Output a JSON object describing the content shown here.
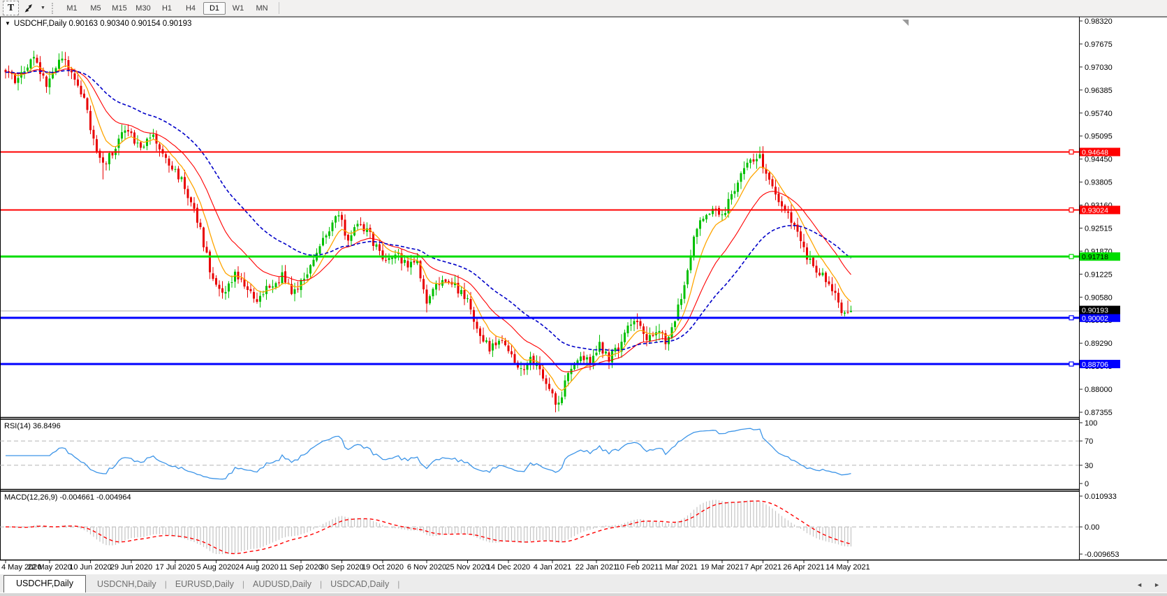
{
  "toolbar": {
    "text_tool_label": "T",
    "dropdown_caret": "▼",
    "timeframes": [
      "M1",
      "M5",
      "M15",
      "M30",
      "H1",
      "H4",
      "D1",
      "W1",
      "MN"
    ],
    "active_timeframe": "D1"
  },
  "title": {
    "prefix": "▼",
    "text": "USDCHF,Daily  0.90163 0.90340 0.90154 0.90193"
  },
  "chart_data": {
    "type": "candlestick",
    "symbol": "USDCHF",
    "timeframe": "Daily",
    "bars": 270,
    "last_bar": {
      "open": 0.90163,
      "high": 0.9034,
      "low": 0.90154,
      "close": 0.90193
    },
    "price_axis": {
      "top": 0.9832,
      "bottom": 0.87355,
      "ticks": [
        "0.98320",
        "0.97675",
        "0.97030",
        "0.96385",
        "0.95740",
        "0.95095",
        "0.94450",
        "0.93805",
        "0.93160",
        "0.92515",
        "0.91870",
        "0.91225",
        "0.90580",
        "0.89935",
        "0.89290",
        "0.88645",
        "0.88000",
        "0.87355"
      ]
    },
    "date_ticks": [
      [
        "4 May 2020",
        0
      ],
      [
        "22 May 2020",
        14
      ],
      [
        "10 Jun 2020",
        27
      ],
      [
        "29 Jun 2020",
        40
      ],
      [
        "17 Jul 2020",
        54
      ],
      [
        "5 Aug 2020",
        67
      ],
      [
        "24 Aug 2020",
        80
      ],
      [
        "11 Sep 2020",
        94
      ],
      [
        "30 Sep 2020",
        107
      ],
      [
        "19 Oct 2020",
        120
      ],
      [
        "6 Nov 2020",
        134
      ],
      [
        "25 Nov 2020",
        147
      ],
      [
        "14 Dec 2020",
        160
      ],
      [
        "4 Jan 2021",
        174
      ],
      [
        "22 Jan 2021",
        188
      ],
      [
        "10 Feb 2021",
        201
      ],
      [
        "1 Mar 2021",
        214
      ],
      [
        "19 Mar 2021",
        228
      ],
      [
        "7 Apr 2021",
        241
      ],
      [
        "26 Apr 2021",
        254
      ],
      [
        "14 May 2021",
        268
      ]
    ],
    "close_anchors": [
      [
        0,
        0.9695
      ],
      [
        4,
        0.966
      ],
      [
        9,
        0.974
      ],
      [
        13,
        0.9645
      ],
      [
        17,
        0.9725
      ],
      [
        21,
        0.9695
      ],
      [
        25,
        0.961
      ],
      [
        28,
        0.95
      ],
      [
        31,
        0.943
      ],
      [
        34,
        0.9465
      ],
      [
        38,
        0.9525
      ],
      [
        43,
        0.948
      ],
      [
        47,
        0.9505
      ],
      [
        52,
        0.943
      ],
      [
        56,
        0.9385
      ],
      [
        60,
        0.931
      ],
      [
        63,
        0.921
      ],
      [
        66,
        0.9105
      ],
      [
        69,
        0.906
      ],
      [
        73,
        0.913
      ],
      [
        77,
        0.909
      ],
      [
        80,
        0.9045
      ],
      [
        84,
        0.909
      ],
      [
        88,
        0.9115
      ],
      [
        91,
        0.907
      ],
      [
        95,
        0.911
      ],
      [
        99,
        0.918
      ],
      [
        103,
        0.925
      ],
      [
        106,
        0.9295
      ],
      [
        109,
        0.9215
      ],
      [
        112,
        0.9265
      ],
      [
        116,
        0.923
      ],
      [
        120,
        0.916
      ],
      [
        124,
        0.918
      ],
      [
        128,
        0.9145
      ],
      [
        131,
        0.9155
      ],
      [
        134,
        0.9045
      ],
      [
        137,
        0.909
      ],
      [
        140,
        0.911
      ],
      [
        144,
        0.908
      ],
      [
        147,
        0.905
      ],
      [
        150,
        0.8965
      ],
      [
        154,
        0.8915
      ],
      [
        158,
        0.8945
      ],
      [
        161,
        0.89
      ],
      [
        164,
        0.8855
      ],
      [
        167,
        0.889
      ],
      [
        170,
        0.886
      ],
      [
        173,
        0.8805
      ],
      [
        176,
        0.875
      ],
      [
        179,
        0.885
      ],
      [
        183,
        0.89
      ],
      [
        186,
        0.888
      ],
      [
        189,
        0.892
      ],
      [
        192,
        0.889
      ],
      [
        195,
        0.8915
      ],
      [
        198,
        0.897
      ],
      [
        201,
        0.9
      ],
      [
        204,
        0.8935
      ],
      [
        207,
        0.897
      ],
      [
        210,
        0.8935
      ],
      [
        213,
        0.9
      ],
      [
        216,
        0.9085
      ],
      [
        219,
        0.9225
      ],
      [
        222,
        0.9285
      ],
      [
        225,
        0.9305
      ],
      [
        228,
        0.928
      ],
      [
        231,
        0.935
      ],
      [
        234,
        0.94
      ],
      [
        237,
        0.944
      ],
      [
        240,
        0.9455
      ],
      [
        243,
        0.9385
      ],
      [
        246,
        0.933
      ],
      [
        249,
        0.9285
      ],
      [
        252,
        0.9235
      ],
      [
        255,
        0.9165
      ],
      [
        258,
        0.9135
      ],
      [
        261,
        0.9105
      ],
      [
        264,
        0.906
      ],
      [
        266,
        0.901
      ],
      [
        268,
        0.9035
      ],
      [
        269,
        0.90193
      ]
    ],
    "special_wicks": [
      {
        "bar": 31,
        "low": 0.9388
      },
      {
        "bar": 134,
        "low": 0.9015
      },
      {
        "bar": 176,
        "low": 0.8738
      },
      {
        "bar": 240,
        "high": 0.9472
      }
    ],
    "horizontal_lines": [
      {
        "price": 0.94648,
        "label": "0.94648",
        "color": "#ff0000",
        "thickness": 2,
        "text_color": "#ffffff"
      },
      {
        "price": 0.93024,
        "label": "0.93024",
        "color": "#ff0000",
        "thickness": 2,
        "text_color": "#ffffff"
      },
      {
        "price": 0.91718,
        "label": "0.91718",
        "color": "#00dd00",
        "thickness": 3,
        "text_color": "#000000"
      },
      {
        "price": 0.90002,
        "label": "0.90002",
        "color": "#0000ff",
        "thickness": 3,
        "text_color": "#ffffff"
      },
      {
        "price": 0.88706,
        "label": "0.88706",
        "color": "#0000ff",
        "thickness": 3,
        "text_color": "#ffffff"
      }
    ],
    "current_price_tag": {
      "price": 0.90193,
      "label": "0.90193",
      "bg": "#000000",
      "fg": "#ffffff",
      "line_color": "#aaaaaa"
    },
    "candle_colors": {
      "up": "#00c000",
      "down": "#e80000"
    },
    "moving_averages": [
      {
        "name": "fast",
        "period": 8,
        "color": "#ffa500",
        "width": 1.3,
        "dash": ""
      },
      {
        "name": "medium",
        "period": 21,
        "color": "#ff0000",
        "width": 1.1,
        "dash": ""
      },
      {
        "name": "slow",
        "period": 45,
        "color": "#0000c8",
        "width": 1.6,
        "dash": "5 3"
      }
    ],
    "indicators": [
      {
        "name": "RSI",
        "label": "RSI(14) 36.8496",
        "period": 14,
        "value": "36.8496",
        "line_color": "#3d95e8",
        "axis_ticks": [
          [
            "100",
            100
          ],
          [
            "70",
            70
          ],
          [
            "30",
            30
          ],
          [
            "0",
            0
          ]
        ],
        "levels": [
          70,
          30
        ]
      },
      {
        "name": "MACD",
        "label": "MACD(12,26,9) -0.004661 -0.004964",
        "main": "-0.004661",
        "signal": "-0.004964",
        "axis_ticks": [
          [
            "0.010933",
            0.010933
          ],
          [
            "0.00",
            0
          ],
          [
            "-0.009653",
            -0.009653
          ]
        ],
        "max": 0.010933,
        "min": -0.009653,
        "histogram_color": "#c4c4c4",
        "signal_color": "#ff0000"
      }
    ]
  },
  "tabs": {
    "items": [
      "USDCHF,Daily",
      "USDCNH,Daily",
      "EURUSD,Daily",
      "AUDUSD,Daily",
      "USDCAD,Daily"
    ],
    "active_index": 0,
    "scroll_left": "◄",
    "scroll_right": "►"
  }
}
